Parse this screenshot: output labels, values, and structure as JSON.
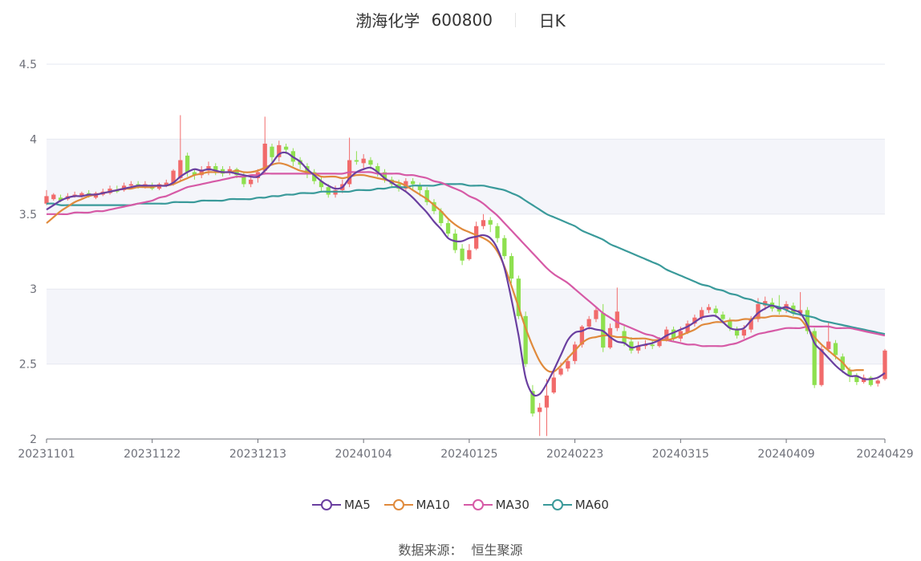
{
  "title": {
    "name": "渤海化学",
    "code": "600800",
    "period": "日K"
  },
  "source": {
    "label": "数据来源：",
    "value": "恒生聚源"
  },
  "colors": {
    "up": "#f16b6b",
    "down": "#8ee04f",
    "MA5": "#6a3fa0",
    "MA10": "#e08a3c",
    "MA30": "#d65aa6",
    "MA60": "#3a9a9a",
    "grid": "#e6e8f0",
    "band": "#f4f5fa",
    "axis": "#6e7079"
  },
  "chart_data": {
    "type": "candlestick",
    "ylim": [
      2,
      4.5
    ],
    "y_ticks": [
      "2",
      "2.5",
      "3",
      "3.5",
      "4",
      "4.5"
    ],
    "x_tick_labels": [
      "20231101",
      "20231122",
      "20231213",
      "20240104",
      "20240125",
      "20240223",
      "20240315",
      "20240409",
      "20240429"
    ],
    "x_tick_index": [
      0,
      15,
      30,
      45,
      60,
      75,
      90,
      105,
      119
    ],
    "series_legend": [
      "MA5",
      "MA10",
      "MA30",
      "MA60"
    ],
    "candles": [
      [
        3.57,
        3.62,
        3.66,
        3.56
      ],
      [
        3.6,
        3.63,
        3.64,
        3.59
      ],
      [
        3.61,
        3.59,
        3.63,
        3.58
      ],
      [
        3.6,
        3.62,
        3.64,
        3.59
      ],
      [
        3.62,
        3.63,
        3.65,
        3.61
      ],
      [
        3.62,
        3.64,
        3.65,
        3.61
      ],
      [
        3.64,
        3.62,
        3.66,
        3.61
      ],
      [
        3.61,
        3.64,
        3.65,
        3.6
      ],
      [
        3.63,
        3.65,
        3.67,
        3.62
      ],
      [
        3.64,
        3.67,
        3.69,
        3.63
      ],
      [
        3.66,
        3.65,
        3.69,
        3.64
      ],
      [
        3.66,
        3.69,
        3.71,
        3.65
      ],
      [
        3.69,
        3.7,
        3.72,
        3.68
      ],
      [
        3.7,
        3.68,
        3.72,
        3.67
      ],
      [
        3.68,
        3.7,
        3.72,
        3.67
      ],
      [
        3.69,
        3.67,
        3.71,
        3.66
      ],
      [
        3.67,
        3.7,
        3.71,
        3.66
      ],
      [
        3.69,
        3.71,
        3.73,
        3.68
      ],
      [
        3.7,
        3.79,
        3.8,
        3.69
      ],
      [
        3.74,
        3.86,
        4.16,
        3.72
      ],
      [
        3.89,
        3.78,
        3.91,
        3.75
      ],
      [
        3.78,
        3.76,
        3.8,
        3.73
      ],
      [
        3.76,
        3.79,
        3.82,
        3.74
      ],
      [
        3.79,
        3.82,
        3.85,
        3.76
      ],
      [
        3.82,
        3.79,
        3.84,
        3.76
      ],
      [
        3.8,
        3.77,
        3.82,
        3.75
      ],
      [
        3.78,
        3.8,
        3.82,
        3.76
      ],
      [
        3.8,
        3.76,
        3.81,
        3.74
      ],
      [
        3.75,
        3.7,
        3.78,
        3.68
      ],
      [
        3.7,
        3.73,
        3.76,
        3.68
      ],
      [
        3.74,
        3.78,
        3.8,
        3.71
      ],
      [
        3.79,
        3.97,
        4.15,
        3.77
      ],
      [
        3.95,
        3.88,
        3.97,
        3.84
      ],
      [
        3.88,
        3.96,
        3.99,
        3.85
      ],
      [
        3.95,
        3.93,
        3.97,
        3.9
      ],
      [
        3.92,
        3.85,
        3.94,
        3.82
      ],
      [
        3.86,
        3.83,
        3.88,
        3.8
      ],
      [
        3.82,
        3.77,
        3.84,
        3.74
      ],
      [
        3.78,
        3.72,
        3.8,
        3.7
      ],
      [
        3.72,
        3.68,
        3.75,
        3.65
      ],
      [
        3.68,
        3.63,
        3.7,
        3.61
      ],
      [
        3.63,
        3.66,
        3.69,
        3.61
      ],
      [
        3.66,
        3.7,
        3.73,
        3.64
      ],
      [
        3.7,
        3.86,
        4.01,
        3.68
      ],
      [
        3.86,
        3.85,
        3.92,
        3.83
      ],
      [
        3.84,
        3.87,
        3.9,
        3.8
      ],
      [
        3.86,
        3.83,
        3.88,
        3.8
      ],
      [
        3.82,
        3.78,
        3.84,
        3.75
      ],
      [
        3.78,
        3.73,
        3.8,
        3.71
      ],
      [
        3.73,
        3.7,
        3.75,
        3.68
      ],
      [
        3.7,
        3.67,
        3.73,
        3.65
      ],
      [
        3.67,
        3.72,
        3.74,
        3.65
      ],
      [
        3.72,
        3.7,
        3.74,
        3.66
      ],
      [
        3.69,
        3.66,
        3.71,
        3.62
      ],
      [
        3.66,
        3.58,
        3.68,
        3.56
      ],
      [
        3.58,
        3.52,
        3.6,
        3.5
      ],
      [
        3.52,
        3.44,
        3.54,
        3.42
      ],
      [
        3.44,
        3.37,
        3.46,
        3.35
      ],
      [
        3.37,
        3.26,
        3.4,
        3.24
      ],
      [
        3.27,
        3.19,
        3.3,
        3.16
      ],
      [
        3.2,
        3.26,
        3.3,
        3.19
      ],
      [
        3.27,
        3.42,
        3.45,
        3.26
      ],
      [
        3.42,
        3.46,
        3.5,
        3.4
      ],
      [
        3.46,
        3.43,
        3.48,
        3.38
      ],
      [
        3.42,
        3.34,
        3.44,
        3.31
      ],
      [
        3.34,
        3.22,
        3.36,
        3.2
      ],
      [
        3.22,
        3.07,
        3.24,
        3.04
      ],
      [
        3.07,
        2.82,
        3.09,
        2.8
      ],
      [
        2.82,
        2.5,
        2.85,
        2.48
      ],
      [
        2.32,
        2.17,
        2.36,
        2.15
      ],
      [
        2.18,
        2.21,
        2.24,
        2.02
      ],
      [
        2.21,
        2.29,
        2.4,
        2.02
      ],
      [
        2.31,
        2.41,
        2.45,
        2.3
      ],
      [
        2.43,
        2.47,
        2.51,
        2.42
      ],
      [
        2.47,
        2.52,
        2.55,
        2.45
      ],
      [
        2.52,
        2.63,
        2.65,
        2.5
      ],
      [
        2.63,
        2.75,
        2.76,
        2.61
      ],
      [
        2.75,
        2.8,
        2.82,
        2.73
      ],
      [
        2.8,
        2.86,
        2.88,
        2.78
      ],
      [
        2.84,
        2.61,
        2.9,
        2.58
      ],
      [
        2.61,
        2.74,
        2.77,
        2.6
      ],
      [
        2.74,
        2.85,
        3.01,
        2.72
      ],
      [
        2.72,
        2.64,
        2.76,
        2.62
      ],
      [
        2.65,
        2.59,
        2.68,
        2.57
      ],
      [
        2.59,
        2.62,
        2.65,
        2.57
      ],
      [
        2.62,
        2.63,
        2.66,
        2.6
      ],
      [
        2.63,
        2.62,
        2.66,
        2.6
      ],
      [
        2.62,
        2.66,
        2.68,
        2.61
      ],
      [
        2.66,
        2.73,
        2.75,
        2.65
      ],
      [
        2.73,
        2.67,
        2.75,
        2.65
      ],
      [
        2.67,
        2.72,
        2.75,
        2.65
      ],
      [
        2.71,
        2.77,
        2.79,
        2.7
      ],
      [
        2.77,
        2.81,
        2.83,
        2.75
      ],
      [
        2.81,
        2.86,
        2.88,
        2.79
      ],
      [
        2.86,
        2.88,
        2.9,
        2.84
      ],
      [
        2.87,
        2.84,
        2.89,
        2.81
      ],
      [
        2.83,
        2.8,
        2.85,
        2.77
      ],
      [
        2.79,
        2.74,
        2.81,
        2.72
      ],
      [
        2.73,
        2.69,
        2.75,
        2.67
      ],
      [
        2.69,
        2.73,
        2.76,
        2.67
      ],
      [
        2.73,
        2.8,
        2.82,
        2.71
      ],
      [
        2.8,
        2.9,
        2.94,
        2.78
      ],
      [
        2.89,
        2.92,
        2.95,
        2.86
      ],
      [
        2.91,
        2.87,
        2.94,
        2.85
      ],
      [
        2.87,
        2.85,
        2.96,
        2.83
      ],
      [
        2.86,
        2.9,
        2.92,
        2.84
      ],
      [
        2.89,
        2.84,
        2.91,
        2.82
      ],
      [
        2.84,
        2.86,
        2.98,
        2.82
      ],
      [
        2.86,
        2.72,
        2.88,
        2.7
      ],
      [
        2.72,
        2.36,
        2.74,
        2.34
      ],
      [
        2.36,
        2.6,
        2.62,
        2.35
      ],
      [
        2.6,
        2.65,
        2.78,
        2.58
      ],
      [
        2.64,
        2.56,
        2.66,
        2.53
      ],
      [
        2.55,
        2.46,
        2.57,
        2.44
      ],
      [
        2.46,
        2.42,
        2.48,
        2.38
      ],
      [
        2.42,
        2.38,
        2.44,
        2.36
      ],
      [
        2.38,
        2.41,
        2.43,
        2.37
      ],
      [
        2.41,
        2.36,
        2.42,
        2.35
      ],
      [
        2.37,
        2.39,
        2.4,
        2.35
      ],
      [
        2.4,
        2.59,
        2.6,
        2.39
      ]
    ],
    "MA5": [
      3.53,
      3.56,
      3.59,
      3.61,
      3.62,
      3.62,
      3.63,
      3.63,
      3.64,
      3.65,
      3.66,
      3.67,
      3.68,
      3.69,
      3.69,
      3.69,
      3.69,
      3.69,
      3.71,
      3.75,
      3.78,
      3.8,
      3.79,
      3.8,
      3.79,
      3.78,
      3.78,
      3.77,
      3.76,
      3.75,
      3.75,
      3.79,
      3.84,
      3.9,
      3.91,
      3.88,
      3.85,
      3.8,
      3.76,
      3.72,
      3.69,
      3.67,
      3.68,
      3.74,
      3.78,
      3.8,
      3.81,
      3.78,
      3.74,
      3.71,
      3.68,
      3.65,
      3.61,
      3.56,
      3.51,
      3.45,
      3.4,
      3.34,
      3.32,
      3.32,
      3.34,
      3.35,
      3.36,
      3.34,
      3.27,
      3.14,
      2.93,
      2.69,
      2.41,
      2.3,
      2.3,
      2.37,
      2.46,
      2.56,
      2.66,
      2.71,
      2.72,
      2.74,
      2.73,
      2.72,
      2.68,
      2.65,
      2.64,
      2.61,
      2.62,
      2.63,
      2.64,
      2.66,
      2.69,
      2.71,
      2.73,
      2.75,
      2.78,
      2.81,
      2.82,
      2.82,
      2.78,
      2.74,
      2.73,
      2.74,
      2.79,
      2.84,
      2.87,
      2.89,
      2.87,
      2.88,
      2.86,
      2.84,
      2.76,
      2.64,
      2.59,
      2.54,
      2.49,
      2.45,
      2.42,
      2.42,
      2.4,
      2.4,
      2.41,
      2.44
    ],
    "MA10": [
      3.44,
      3.48,
      3.52,
      3.55,
      3.58,
      3.6,
      3.62,
      3.63,
      3.64,
      3.65,
      3.66,
      3.67,
      3.67,
      3.68,
      3.68,
      3.68,
      3.69,
      3.69,
      3.7,
      3.72,
      3.74,
      3.76,
      3.77,
      3.78,
      3.78,
      3.78,
      3.78,
      3.79,
      3.78,
      3.78,
      3.79,
      3.81,
      3.83,
      3.84,
      3.83,
      3.81,
      3.79,
      3.78,
      3.77,
      3.75,
      3.75,
      3.75,
      3.74,
      3.75,
      3.76,
      3.76,
      3.75,
      3.74,
      3.73,
      3.72,
      3.71,
      3.69,
      3.66,
      3.63,
      3.6,
      3.56,
      3.52,
      3.47,
      3.43,
      3.4,
      3.38,
      3.36,
      3.34,
      3.31,
      3.25,
      3.15,
      3.02,
      2.88,
      2.74,
      2.62,
      2.52,
      2.46,
      2.45,
      2.49,
      2.54,
      2.59,
      2.64,
      2.67,
      2.68,
      2.69,
      2.69,
      2.68,
      2.68,
      2.67,
      2.67,
      2.67,
      2.66,
      2.66,
      2.66,
      2.67,
      2.69,
      2.71,
      2.73,
      2.76,
      2.77,
      2.78,
      2.78,
      2.79,
      2.79,
      2.8,
      2.8,
      2.81,
      2.81,
      2.82,
      2.82,
      2.82,
      2.81,
      2.8,
      2.74,
      2.68,
      2.63,
      2.59,
      2.55,
      2.51,
      2.46,
      2.46,
      2.46
    ],
    "MA30": [
      3.5,
      3.5,
      3.5,
      3.5,
      3.51,
      3.51,
      3.51,
      3.52,
      3.52,
      3.53,
      3.54,
      3.55,
      3.56,
      3.57,
      3.58,
      3.59,
      3.61,
      3.62,
      3.64,
      3.66,
      3.68,
      3.69,
      3.7,
      3.71,
      3.72,
      3.73,
      3.74,
      3.75,
      3.75,
      3.76,
      3.76,
      3.77,
      3.77,
      3.77,
      3.77,
      3.77,
      3.77,
      3.77,
      3.77,
      3.77,
      3.77,
      3.77,
      3.77,
      3.78,
      3.78,
      3.78,
      3.78,
      3.77,
      3.77,
      3.77,
      3.77,
      3.76,
      3.76,
      3.75,
      3.74,
      3.72,
      3.71,
      3.69,
      3.67,
      3.65,
      3.62,
      3.6,
      3.57,
      3.53,
      3.49,
      3.44,
      3.39,
      3.34,
      3.29,
      3.24,
      3.19,
      3.14,
      3.1,
      3.07,
      3.04,
      3.0,
      2.96,
      2.92,
      2.88,
      2.84,
      2.81,
      2.78,
      2.76,
      2.74,
      2.72,
      2.7,
      2.69,
      2.67,
      2.66,
      2.65,
      2.64,
      2.63,
      2.63,
      2.62,
      2.62,
      2.62,
      2.62,
      2.63,
      2.64,
      2.66,
      2.68,
      2.7,
      2.71,
      2.72,
      2.73,
      2.74,
      2.74,
      2.74,
      2.75,
      2.75,
      2.75,
      2.75,
      2.74,
      2.74,
      2.74,
      2.73,
      2.72,
      2.71,
      2.7,
      2.69
    ],
    "MA60": [
      3.57,
      3.57,
      3.56,
      3.56,
      3.56,
      3.56,
      3.56,
      3.56,
      3.56,
      3.56,
      3.56,
      3.56,
      3.56,
      3.57,
      3.57,
      3.57,
      3.57,
      3.57,
      3.58,
      3.58,
      3.58,
      3.58,
      3.59,
      3.59,
      3.59,
      3.59,
      3.6,
      3.6,
      3.6,
      3.6,
      3.61,
      3.61,
      3.62,
      3.62,
      3.63,
      3.63,
      3.64,
      3.64,
      3.64,
      3.65,
      3.65,
      3.65,
      3.65,
      3.65,
      3.66,
      3.66,
      3.66,
      3.67,
      3.67,
      3.68,
      3.68,
      3.68,
      3.69,
      3.69,
      3.69,
      3.69,
      3.7,
      3.7,
      3.7,
      3.7,
      3.69,
      3.69,
      3.69,
      3.68,
      3.67,
      3.66,
      3.64,
      3.62,
      3.59,
      3.56,
      3.53,
      3.5,
      3.48,
      3.46,
      3.44,
      3.42,
      3.39,
      3.37,
      3.35,
      3.33,
      3.3,
      3.28,
      3.26,
      3.24,
      3.22,
      3.2,
      3.18,
      3.16,
      3.13,
      3.11,
      3.09,
      3.07,
      3.05,
      3.03,
      3.02,
      3.0,
      2.99,
      2.97,
      2.96,
      2.94,
      2.93,
      2.91,
      2.9,
      2.89,
      2.88,
      2.86,
      2.84,
      2.83,
      2.82,
      2.81,
      2.79,
      2.78,
      2.77,
      2.76,
      2.75,
      2.74,
      2.73,
      2.72,
      2.71,
      2.7
    ]
  }
}
